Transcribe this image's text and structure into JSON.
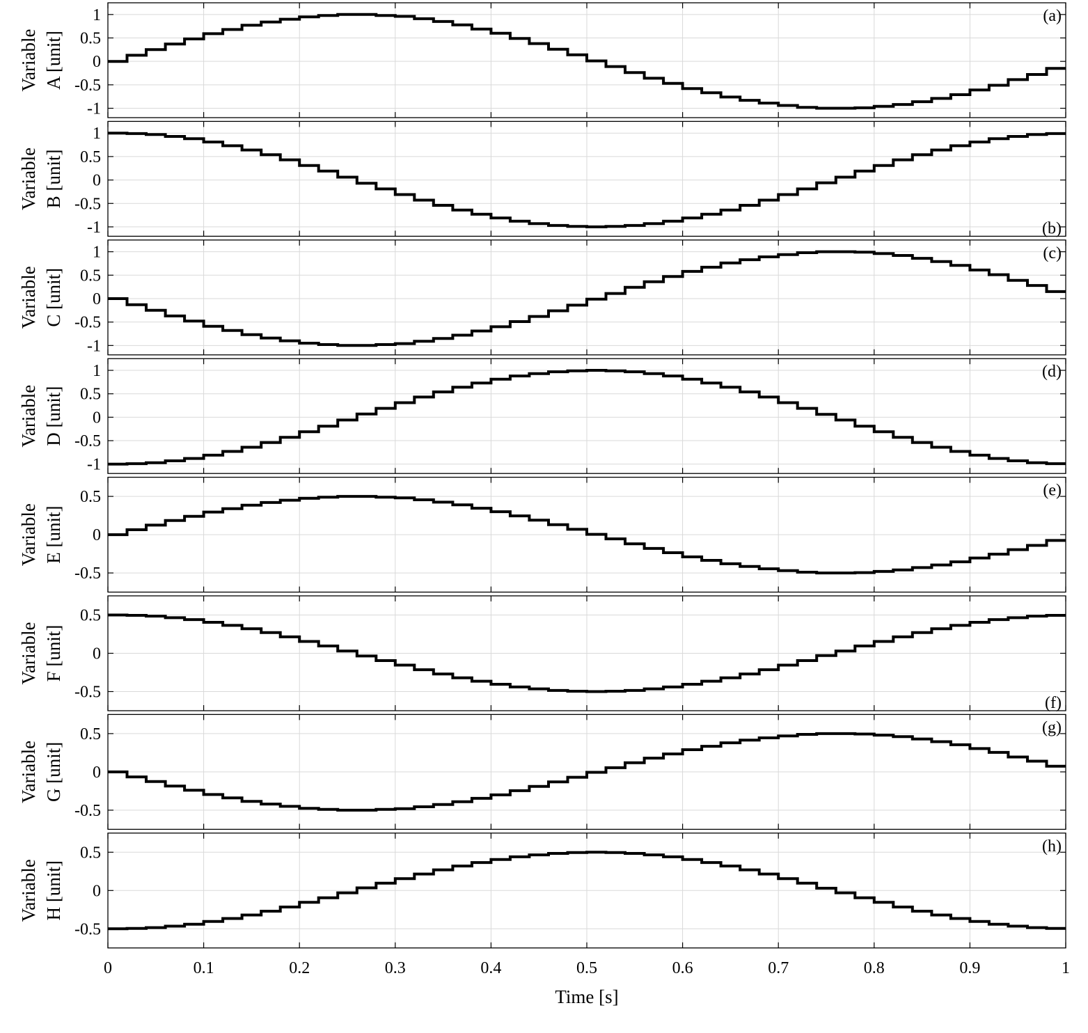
{
  "chart_data": {
    "type": "line",
    "xlabel": "Time [s]",
    "xlim": [
      0,
      1
    ],
    "xticks": [
      0,
      0.1,
      0.2,
      0.3,
      0.4,
      0.5,
      0.6,
      0.7,
      0.8,
      0.9,
      1
    ],
    "xtick_labels": [
      "0",
      "0.1",
      "0.2",
      "0.3",
      "0.4",
      "0.5",
      "0.6",
      "0.7",
      "0.8",
      "0.9",
      "1"
    ],
    "grid": true,
    "step_period_s": 0.02,
    "line_color": "#000000",
    "panels": [
      {
        "tag": "(a)",
        "tag_position": "top-right",
        "ylabel_line1": "Variable",
        "ylabel_line2": "A [unit]",
        "ylim": [
          -1.2,
          1.25
        ],
        "yticks": [
          -1,
          -0.5,
          0,
          0.5,
          1
        ],
        "ytick_labels": [
          "-1",
          "-0.5",
          "0",
          "0.5",
          "1"
        ],
        "x": [
          0,
          0.02,
          0.04,
          0.06,
          0.08,
          0.1,
          0.12,
          0.14,
          0.16,
          0.18,
          0.2,
          0.22,
          0.24,
          0.26,
          0.28,
          0.3,
          0.32,
          0.34,
          0.36,
          0.38,
          0.4,
          0.42,
          0.44,
          0.46,
          0.48,
          0.5,
          0.52,
          0.54,
          0.56,
          0.58,
          0.6,
          0.62,
          0.64,
          0.66,
          0.68,
          0.7,
          0.72,
          0.74,
          0.76,
          0.78,
          0.8,
          0.82,
          0.84,
          0.86,
          0.88,
          0.9,
          0.92,
          0.94,
          0.96,
          0.98
        ],
        "y": [
          0,
          0.13,
          0.25,
          0.37,
          0.48,
          0.59,
          0.68,
          0.77,
          0.84,
          0.9,
          0.95,
          0.98,
          1.0,
          1.0,
          0.98,
          0.96,
          0.91,
          0.85,
          0.78,
          0.69,
          0.6,
          0.49,
          0.38,
          0.26,
          0.14,
          0.01,
          -0.11,
          -0.24,
          -0.36,
          -0.47,
          -0.58,
          -0.67,
          -0.76,
          -0.83,
          -0.89,
          -0.94,
          -0.98,
          -1.0,
          -1.0,
          -0.99,
          -0.96,
          -0.92,
          -0.86,
          -0.79,
          -0.71,
          -0.61,
          -0.51,
          -0.39,
          -0.28,
          -0.15
        ]
      },
      {
        "tag": "(b)",
        "tag_position": "bottom-right",
        "ylabel_line1": "Variable",
        "ylabel_line2": "B [unit]",
        "ylim": [
          -1.2,
          1.25
        ],
        "yticks": [
          -1,
          -0.5,
          0,
          0.5,
          1
        ],
        "ytick_labels": [
          "-1",
          "-0.5",
          "0",
          "0.5",
          "1"
        ],
        "x": [
          0,
          0.02,
          0.04,
          0.06,
          0.08,
          0.1,
          0.12,
          0.14,
          0.16,
          0.18,
          0.2,
          0.22,
          0.24,
          0.26,
          0.28,
          0.3,
          0.32,
          0.34,
          0.36,
          0.38,
          0.4,
          0.42,
          0.44,
          0.46,
          0.48,
          0.5,
          0.52,
          0.54,
          0.56,
          0.58,
          0.6,
          0.62,
          0.64,
          0.66,
          0.68,
          0.7,
          0.72,
          0.74,
          0.76,
          0.78,
          0.8,
          0.82,
          0.84,
          0.86,
          0.88,
          0.9,
          0.92,
          0.94,
          0.96,
          0.98
        ],
        "y": [
          1.0,
          0.99,
          0.97,
          0.93,
          0.88,
          0.81,
          0.73,
          0.64,
          0.54,
          0.43,
          0.31,
          0.19,
          0.06,
          -0.07,
          -0.19,
          -0.31,
          -0.43,
          -0.54,
          -0.64,
          -0.73,
          -0.81,
          -0.88,
          -0.93,
          -0.97,
          -0.99,
          -1.0,
          -0.99,
          -0.97,
          -0.93,
          -0.88,
          -0.81,
          -0.73,
          -0.64,
          -0.54,
          -0.43,
          -0.31,
          -0.19,
          -0.06,
          0.06,
          0.19,
          0.31,
          0.43,
          0.54,
          0.64,
          0.73,
          0.81,
          0.88,
          0.93,
          0.97,
          0.99
        ]
      },
      {
        "tag": "(c)",
        "tag_position": "top-right",
        "ylabel_line1": "Variable",
        "ylabel_line2": "C [unit]",
        "ylim": [
          -1.2,
          1.25
        ],
        "yticks": [
          -1,
          -0.5,
          0,
          0.5,
          1
        ],
        "ytick_labels": [
          "-1",
          "-0.5",
          "0",
          "0.5",
          "1"
        ],
        "x": [
          0,
          0.02,
          0.04,
          0.06,
          0.08,
          0.1,
          0.12,
          0.14,
          0.16,
          0.18,
          0.2,
          0.22,
          0.24,
          0.26,
          0.28,
          0.3,
          0.32,
          0.34,
          0.36,
          0.38,
          0.4,
          0.42,
          0.44,
          0.46,
          0.48,
          0.5,
          0.52,
          0.54,
          0.56,
          0.58,
          0.6,
          0.62,
          0.64,
          0.66,
          0.68,
          0.7,
          0.72,
          0.74,
          0.76,
          0.78,
          0.8,
          0.82,
          0.84,
          0.86,
          0.88,
          0.9,
          0.92,
          0.94,
          0.96,
          0.98
        ],
        "y": [
          0,
          -0.13,
          -0.25,
          -0.37,
          -0.48,
          -0.59,
          -0.68,
          -0.77,
          -0.84,
          -0.9,
          -0.95,
          -0.98,
          -1.0,
          -1.0,
          -0.98,
          -0.96,
          -0.91,
          -0.85,
          -0.78,
          -0.69,
          -0.6,
          -0.49,
          -0.38,
          -0.26,
          -0.14,
          -0.01,
          0.11,
          0.24,
          0.36,
          0.47,
          0.58,
          0.67,
          0.76,
          0.83,
          0.89,
          0.94,
          0.98,
          1.0,
          1.0,
          0.99,
          0.96,
          0.92,
          0.86,
          0.79,
          0.71,
          0.61,
          0.51,
          0.39,
          0.28,
          0.15
        ]
      },
      {
        "tag": "(d)",
        "tag_position": "top-right",
        "ylabel_line1": "Variable",
        "ylabel_line2": "D [unit]",
        "ylim": [
          -1.2,
          1.25
        ],
        "yticks": [
          -1,
          -0.5,
          0,
          0.5,
          1
        ],
        "ytick_labels": [
          "-1",
          "-0.5",
          "0",
          "0.5",
          "1"
        ],
        "x": [
          0,
          0.02,
          0.04,
          0.06,
          0.08,
          0.1,
          0.12,
          0.14,
          0.16,
          0.18,
          0.2,
          0.22,
          0.24,
          0.26,
          0.28,
          0.3,
          0.32,
          0.34,
          0.36,
          0.38,
          0.4,
          0.42,
          0.44,
          0.46,
          0.48,
          0.5,
          0.52,
          0.54,
          0.56,
          0.58,
          0.6,
          0.62,
          0.64,
          0.66,
          0.68,
          0.7,
          0.72,
          0.74,
          0.76,
          0.78,
          0.8,
          0.82,
          0.84,
          0.86,
          0.88,
          0.9,
          0.92,
          0.94,
          0.96,
          0.98
        ],
        "y": [
          -1.0,
          -0.99,
          -0.97,
          -0.93,
          -0.88,
          -0.81,
          -0.73,
          -0.64,
          -0.54,
          -0.43,
          -0.31,
          -0.19,
          -0.06,
          0.07,
          0.19,
          0.31,
          0.43,
          0.54,
          0.64,
          0.73,
          0.81,
          0.88,
          0.93,
          0.97,
          0.99,
          1.0,
          0.99,
          0.97,
          0.93,
          0.88,
          0.81,
          0.73,
          0.64,
          0.54,
          0.43,
          0.31,
          0.19,
          0.06,
          -0.06,
          -0.19,
          -0.31,
          -0.43,
          -0.54,
          -0.64,
          -0.73,
          -0.81,
          -0.88,
          -0.93,
          -0.97,
          -0.99
        ]
      },
      {
        "tag": "(e)",
        "tag_position": "top-right",
        "ylabel_line1": "Variable",
        "ylabel_line2": "E [unit]",
        "ylim": [
          -0.75,
          0.75
        ],
        "yticks": [
          -0.5,
          0,
          0.5
        ],
        "ytick_labels": [
          "-0.5",
          "0",
          "0.5"
        ],
        "x": [
          0,
          0.02,
          0.04,
          0.06,
          0.08,
          0.1,
          0.12,
          0.14,
          0.16,
          0.18,
          0.2,
          0.22,
          0.24,
          0.26,
          0.28,
          0.3,
          0.32,
          0.34,
          0.36,
          0.38,
          0.4,
          0.42,
          0.44,
          0.46,
          0.48,
          0.5,
          0.52,
          0.54,
          0.56,
          0.58,
          0.6,
          0.62,
          0.64,
          0.66,
          0.68,
          0.7,
          0.72,
          0.74,
          0.76,
          0.78,
          0.8,
          0.82,
          0.84,
          0.86,
          0.88,
          0.9,
          0.92,
          0.94,
          0.96,
          0.98
        ],
        "y": [
          0,
          0.065,
          0.125,
          0.185,
          0.24,
          0.295,
          0.34,
          0.385,
          0.42,
          0.45,
          0.475,
          0.49,
          0.5,
          0.5,
          0.49,
          0.48,
          0.455,
          0.425,
          0.39,
          0.345,
          0.3,
          0.245,
          0.19,
          0.13,
          0.07,
          0.005,
          -0.055,
          -0.12,
          -0.18,
          -0.235,
          -0.29,
          -0.335,
          -0.38,
          -0.415,
          -0.445,
          -0.47,
          -0.49,
          -0.5,
          -0.5,
          -0.495,
          -0.48,
          -0.46,
          -0.43,
          -0.395,
          -0.355,
          -0.305,
          -0.255,
          -0.195,
          -0.14,
          -0.075
        ]
      },
      {
        "tag": "(f)",
        "tag_position": "bottom-right",
        "ylabel_line1": "Variable",
        "ylabel_line2": "F [unit]",
        "ylim": [
          -0.75,
          0.75
        ],
        "yticks": [
          -0.5,
          0,
          0.5
        ],
        "ytick_labels": [
          "-0.5",
          "0",
          "0.5"
        ],
        "x": [
          0,
          0.02,
          0.04,
          0.06,
          0.08,
          0.1,
          0.12,
          0.14,
          0.16,
          0.18,
          0.2,
          0.22,
          0.24,
          0.26,
          0.28,
          0.3,
          0.32,
          0.34,
          0.36,
          0.38,
          0.4,
          0.42,
          0.44,
          0.46,
          0.48,
          0.5,
          0.52,
          0.54,
          0.56,
          0.58,
          0.6,
          0.62,
          0.64,
          0.66,
          0.68,
          0.7,
          0.72,
          0.74,
          0.76,
          0.78,
          0.8,
          0.82,
          0.84,
          0.86,
          0.88,
          0.9,
          0.92,
          0.94,
          0.96,
          0.98
        ],
        "y": [
          0.5,
          0.495,
          0.485,
          0.465,
          0.44,
          0.405,
          0.365,
          0.32,
          0.27,
          0.215,
          0.155,
          0.095,
          0.03,
          -0.035,
          -0.095,
          -0.155,
          -0.215,
          -0.27,
          -0.32,
          -0.365,
          -0.405,
          -0.44,
          -0.465,
          -0.485,
          -0.495,
          -0.5,
          -0.495,
          -0.485,
          -0.465,
          -0.44,
          -0.405,
          -0.365,
          -0.32,
          -0.27,
          -0.215,
          -0.155,
          -0.095,
          -0.03,
          0.03,
          0.095,
          0.155,
          0.215,
          0.27,
          0.32,
          0.365,
          0.405,
          0.44,
          0.465,
          0.485,
          0.495
        ]
      },
      {
        "tag": "(g)",
        "tag_position": "top-right",
        "ylabel_line1": "Variable",
        "ylabel_line2": "G [unit]",
        "ylim": [
          -0.75,
          0.75
        ],
        "yticks": [
          -0.5,
          0,
          0.5
        ],
        "ytick_labels": [
          "-0.5",
          "0",
          "0.5"
        ],
        "x": [
          0,
          0.02,
          0.04,
          0.06,
          0.08,
          0.1,
          0.12,
          0.14,
          0.16,
          0.18,
          0.2,
          0.22,
          0.24,
          0.26,
          0.28,
          0.3,
          0.32,
          0.34,
          0.36,
          0.38,
          0.4,
          0.42,
          0.44,
          0.46,
          0.48,
          0.5,
          0.52,
          0.54,
          0.56,
          0.58,
          0.6,
          0.62,
          0.64,
          0.66,
          0.68,
          0.7,
          0.72,
          0.74,
          0.76,
          0.78,
          0.8,
          0.82,
          0.84,
          0.86,
          0.88,
          0.9,
          0.92,
          0.94,
          0.96,
          0.98
        ],
        "y": [
          0,
          -0.065,
          -0.125,
          -0.185,
          -0.24,
          -0.295,
          -0.34,
          -0.385,
          -0.42,
          -0.45,
          -0.475,
          -0.49,
          -0.5,
          -0.5,
          -0.49,
          -0.48,
          -0.455,
          -0.425,
          -0.39,
          -0.345,
          -0.3,
          -0.245,
          -0.19,
          -0.13,
          -0.07,
          -0.005,
          0.055,
          0.12,
          0.18,
          0.235,
          0.29,
          0.335,
          0.38,
          0.415,
          0.445,
          0.47,
          0.49,
          0.5,
          0.5,
          0.495,
          0.48,
          0.46,
          0.43,
          0.395,
          0.355,
          0.305,
          0.255,
          0.195,
          0.14,
          0.075
        ]
      },
      {
        "tag": "(h)",
        "tag_position": "top-right",
        "ylabel_line1": "Variable",
        "ylabel_line2": "H [unit]",
        "ylim": [
          -0.75,
          0.75
        ],
        "yticks": [
          -0.5,
          0,
          0.5
        ],
        "ytick_labels": [
          "-0.5",
          "0",
          "0.5"
        ],
        "x": [
          0,
          0.02,
          0.04,
          0.06,
          0.08,
          0.1,
          0.12,
          0.14,
          0.16,
          0.18,
          0.2,
          0.22,
          0.24,
          0.26,
          0.28,
          0.3,
          0.32,
          0.34,
          0.36,
          0.38,
          0.4,
          0.42,
          0.44,
          0.46,
          0.48,
          0.5,
          0.52,
          0.54,
          0.56,
          0.58,
          0.6,
          0.62,
          0.64,
          0.66,
          0.68,
          0.7,
          0.72,
          0.74,
          0.76,
          0.78,
          0.8,
          0.82,
          0.84,
          0.86,
          0.88,
          0.9,
          0.92,
          0.94,
          0.96,
          0.98
        ],
        "y": [
          -0.5,
          -0.495,
          -0.485,
          -0.465,
          -0.44,
          -0.405,
          -0.365,
          -0.32,
          -0.27,
          -0.215,
          -0.155,
          -0.095,
          -0.03,
          0.035,
          0.095,
          0.155,
          0.215,
          0.27,
          0.32,
          0.365,
          0.405,
          0.44,
          0.465,
          0.485,
          0.495,
          0.5,
          0.495,
          0.485,
          0.465,
          0.44,
          0.405,
          0.365,
          0.32,
          0.27,
          0.215,
          0.155,
          0.095,
          0.03,
          -0.03,
          -0.095,
          -0.155,
          -0.215,
          -0.27,
          -0.32,
          -0.365,
          -0.405,
          -0.44,
          -0.465,
          -0.485,
          -0.495
        ]
      }
    ]
  }
}
